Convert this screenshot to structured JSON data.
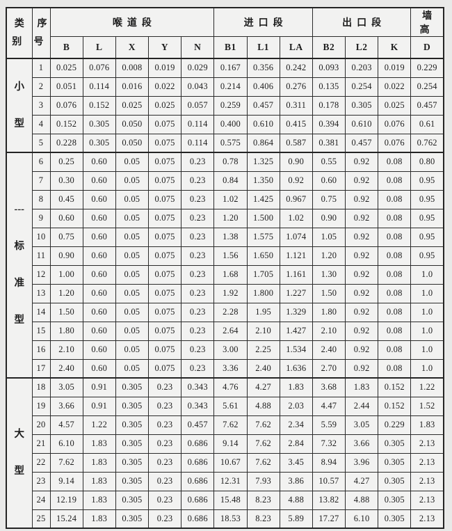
{
  "page": {
    "background": "#e9e9e8"
  },
  "table": {
    "border_color": "#2b2b2b",
    "cell_background": "#f2f2f1",
    "header": {
      "category": "类\n别",
      "serial": "序\n号",
      "throat_section": "喉道段",
      "inlet_section": "进口段",
      "outlet_section": "出口段",
      "wall_height": "墙高",
      "columns": [
        "B",
        "L",
        "X",
        "Y",
        "N",
        "B1",
        "L1",
        "LA",
        "B2",
        "L2",
        "K",
        "D"
      ]
    },
    "groups": [
      {
        "category": "小型",
        "category_chars": [
          "小",
          "型"
        ],
        "rows": [
          {
            "no": "1",
            "values": [
              "0.025",
              "0.076",
              "0.008",
              "0.019",
              "0.029",
              "0.167",
              "0.356",
              "0.242",
              "0.093",
              "0.203",
              "0.019",
              "0.229"
            ]
          },
          {
            "no": "2",
            "values": [
              "0.051",
              "0.114",
              "0.016",
              "0.022",
              "0.043",
              "0.214",
              "0.406",
              "0.276",
              "0.135",
              "0.254",
              "0.022",
              "0.254"
            ]
          },
          {
            "no": "3",
            "values": [
              "0.076",
              "0.152",
              "0.025",
              "0.025",
              "0.057",
              "0.259",
              "0.457",
              "0.311",
              "0.178",
              "0.305",
              "0.025",
              "0.457"
            ]
          },
          {
            "no": "4",
            "values": [
              "0.152",
              "0.305",
              "0.050",
              "0.075",
              "0.114",
              "0.400",
              "0.610",
              "0.415",
              "0.394",
              "0.610",
              "0.076",
              "0.61"
            ]
          },
          {
            "no": "5",
            "values": [
              "0.228",
              "0.305",
              "0.050",
              "0.075",
              "0.114",
              "0.575",
              "0.864",
              "0.587",
              "0.381",
              "0.457",
              "0.076",
              "0.762"
            ]
          }
        ]
      },
      {
        "category": "标准型",
        "category_chars": [
          "---",
          "标",
          "准",
          "型"
        ],
        "rows": [
          {
            "no": "6",
            "values": [
              "0.25",
              "0.60",
              "0.05",
              "0.075",
              "0.23",
              "0.78",
              "1.325",
              "0.90",
              "0.55",
              "0.92",
              "0.08",
              "0.80"
            ]
          },
          {
            "no": "7",
            "values": [
              "0.30",
              "0.60",
              "0.05",
              "0.075",
              "0.23",
              "0.84",
              "1.350",
              "0.92",
              "0.60",
              "0.92",
              "0.08",
              "0.95"
            ]
          },
          {
            "no": "8",
            "values": [
              "0.45",
              "0.60",
              "0.05",
              "0.075",
              "0.23",
              "1.02",
              "1.425",
              "0.967",
              "0.75",
              "0.92",
              "0.08",
              "0.95"
            ]
          },
          {
            "no": "9",
            "values": [
              "0.60",
              "0.60",
              "0.05",
              "0.075",
              "0.23",
              "1.20",
              "1.500",
              "1.02",
              "0.90",
              "0.92",
              "0.08",
              "0.95"
            ]
          },
          {
            "no": "10",
            "values": [
              "0.75",
              "0.60",
              "0.05",
              "0.075",
              "0.23",
              "1.38",
              "1.575",
              "1.074",
              "1.05",
              "0.92",
              "0.08",
              "0.95"
            ]
          },
          {
            "no": "11",
            "values": [
              "0.90",
              "0.60",
              "0.05",
              "0.075",
              "0.23",
              "1.56",
              "1.650",
              "1.121",
              "1.20",
              "0.92",
              "0.08",
              "0.95"
            ]
          },
          {
            "no": "12",
            "values": [
              "1.00",
              "0.60",
              "0.05",
              "0.075",
              "0.23",
              "1.68",
              "1.705",
              "1.161",
              "1.30",
              "0.92",
              "0.08",
              "1.0"
            ]
          },
          {
            "no": "13",
            "values": [
              "1.20",
              "0.60",
              "0.05",
              "0.075",
              "0.23",
              "1.92",
              "1.800",
              "1.227",
              "1.50",
              "0.92",
              "0.08",
              "1.0"
            ]
          },
          {
            "no": "14",
            "values": [
              "1.50",
              "0.60",
              "0.05",
              "0.075",
              "0.23",
              "2.28",
              "1.95",
              "1.329",
              "1.80",
              "0.92",
              "0.08",
              "1.0"
            ]
          },
          {
            "no": "15",
            "values": [
              "1.80",
              "0.60",
              "0.05",
              "0.075",
              "0.23",
              "2.64",
              "2.10",
              "1.427",
              "2.10",
              "0.92",
              "0.08",
              "1.0"
            ]
          },
          {
            "no": "16",
            "values": [
              "2.10",
              "0.60",
              "0.05",
              "0.075",
              "0.23",
              "3.00",
              "2.25",
              "1.534",
              "2.40",
              "0.92",
              "0.08",
              "1.0"
            ]
          },
          {
            "no": "17",
            "values": [
              "2.40",
              "0.60",
              "0.05",
              "0.075",
              "0.23",
              "3.36",
              "2.40",
              "1.636",
              "2.70",
              "0.92",
              "0.08",
              "1.0"
            ]
          }
        ]
      },
      {
        "category": "大型",
        "category_chars": [
          "大",
          "型"
        ],
        "rows": [
          {
            "no": "18",
            "values": [
              "3.05",
              "0.91",
              "0.305",
              "0.23",
              "0.343",
              "4.76",
              "4.27",
              "1.83",
              "3.68",
              "1.83",
              "0.152",
              "1.22"
            ]
          },
          {
            "no": "19",
            "values": [
              "3.66",
              "0.91",
              "0.305",
              "0.23",
              "0.343",
              "5.61",
              "4.88",
              "2.03",
              "4.47",
              "2.44",
              "0.152",
              "1.52"
            ]
          },
          {
            "no": "20",
            "values": [
              "4.57",
              "1.22",
              "0.305",
              "0.23",
              "0.457",
              "7.62",
              "7.62",
              "2.34",
              "5.59",
              "3.05",
              "0.229",
              "1.83"
            ]
          },
          {
            "no": "21",
            "values": [
              "6.10",
              "1.83",
              "0.305",
              "0.23",
              "0.686",
              "9.14",
              "7.62",
              "2.84",
              "7.32",
              "3.66",
              "0.305",
              "2.13"
            ]
          },
          {
            "no": "22",
            "values": [
              "7.62",
              "1.83",
              "0.305",
              "0.23",
              "0.686",
              "10.67",
              "7.62",
              "3.45",
              "8.94",
              "3.96",
              "0.305",
              "2.13"
            ]
          },
          {
            "no": "23",
            "values": [
              "9.14",
              "1.83",
              "0.305",
              "0.23",
              "0.686",
              "12.31",
              "7.93",
              "3.86",
              "10.57",
              "4.27",
              "0.305",
              "2.13"
            ]
          },
          {
            "no": "24",
            "values": [
              "12.19",
              "1.83",
              "0.305",
              "0.23",
              "0.686",
              "15.48",
              "8.23",
              "4.88",
              "13.82",
              "4.88",
              "0.305",
              "2.13"
            ]
          },
          {
            "no": "25",
            "values": [
              "15.24",
              "1.83",
              "0.305",
              "0.23",
              "0.686",
              "18.53",
              "8.23",
              "5.89",
              "17.27",
              "6.10",
              "0.305",
              "2.13"
            ]
          }
        ]
      }
    ]
  }
}
